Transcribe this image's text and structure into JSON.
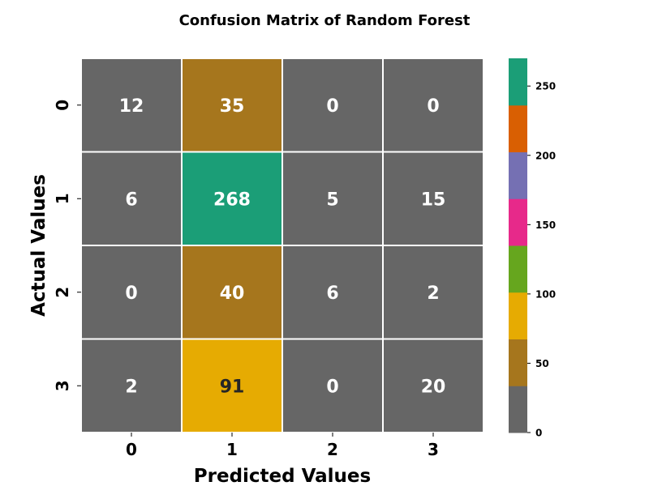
{
  "chart_data": {
    "type": "heatmap",
    "title": "Confusion Matrix of Random Forest",
    "xlabel": "Predicted Values",
    "ylabel": "Actual Values",
    "x_categories": [
      "0",
      "1",
      "2",
      "3"
    ],
    "y_categories": [
      "0",
      "1",
      "2",
      "3"
    ],
    "values": [
      [
        12,
        35,
        0,
        0
      ],
      [
        6,
        268,
        5,
        15
      ],
      [
        0,
        40,
        6,
        2
      ],
      [
        2,
        91,
        0,
        20
      ]
    ],
    "colorbar": {
      "range": [
        0,
        270
      ],
      "ticks": [
        0,
        50,
        100,
        150,
        200,
        250
      ],
      "colors": [
        "#666666",
        "#a6761d",
        "#e6ab02",
        "#66a61e",
        "#e7298a",
        "#7570b3",
        "#d95f02",
        "#1b9e77"
      ]
    },
    "annot_text_colors": {
      "light": "#ffffff",
      "dark": "#262626"
    },
    "grid_line_color": "#ffffff"
  }
}
